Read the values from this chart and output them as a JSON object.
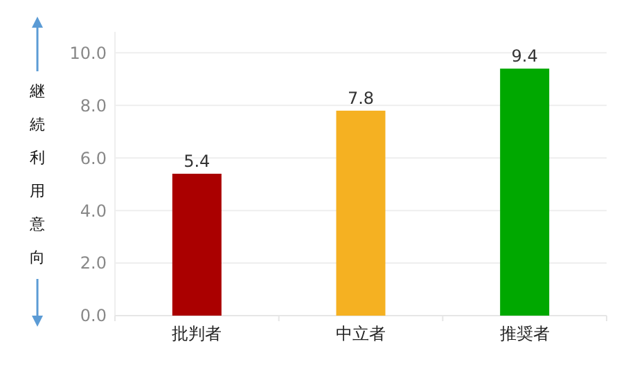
{
  "chart_data": {
    "type": "bar",
    "ylabel": "継続利用意向",
    "categories": [
      "批判者",
      "中立者",
      "推奨者"
    ],
    "values": [
      5.4,
      7.8,
      9.4
    ],
    "colors": [
      "#aa0000",
      "#f5b122",
      "#00a800"
    ],
    "ylim": [
      0,
      10.8
    ],
    "yticks": [
      {
        "value": 0,
        "label": "0.0"
      },
      {
        "value": 2,
        "label": "2.0"
      },
      {
        "value": 4,
        "label": "4.0"
      },
      {
        "value": 6,
        "label": "6.0"
      },
      {
        "value": 8,
        "label": "8.0"
      },
      {
        "value": 10,
        "label": "10.0"
      }
    ],
    "grid": "y",
    "data_labels": true
  }
}
